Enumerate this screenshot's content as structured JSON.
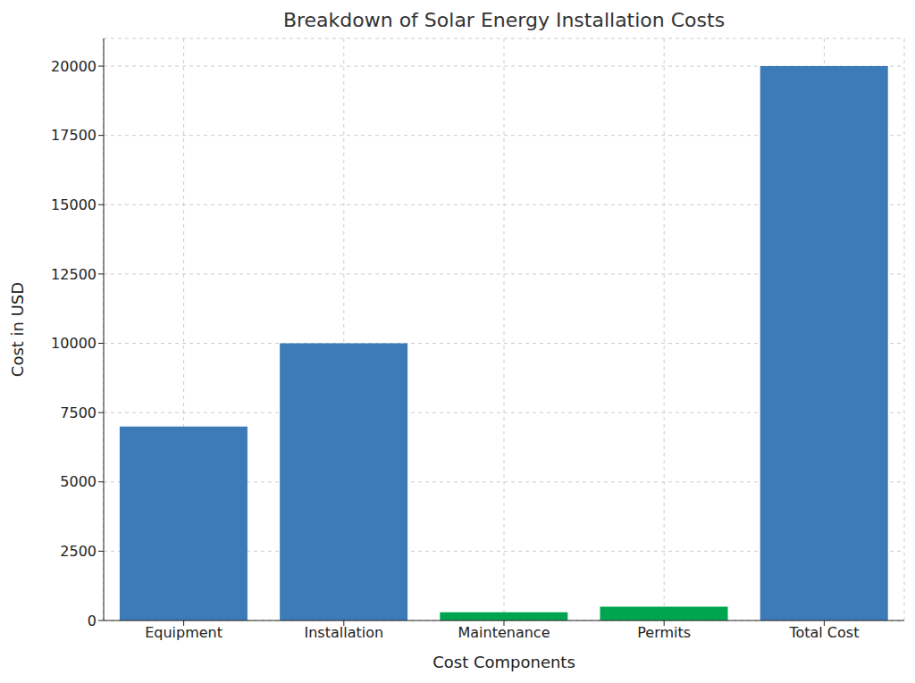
{
  "chart_data": {
    "type": "bar",
    "title": "Breakdown of Solar Energy Installation Costs",
    "xlabel": "Cost Components",
    "ylabel": "Cost in USD",
    "categories": [
      "Equipment",
      "Installation",
      "Maintenance",
      "Permits",
      "Total Cost"
    ],
    "values": [
      7000,
      10000,
      300,
      500,
      20000
    ],
    "colors": [
      "#3d7ab8",
      "#3d7ab8",
      "#00a64f",
      "#00a64f",
      "#3d7ab8"
    ],
    "ylim": [
      0,
      21000
    ],
    "yticks": [
      0,
      2500,
      5000,
      7500,
      10000,
      12500,
      15000,
      17500,
      20000
    ],
    "grid": true
  }
}
